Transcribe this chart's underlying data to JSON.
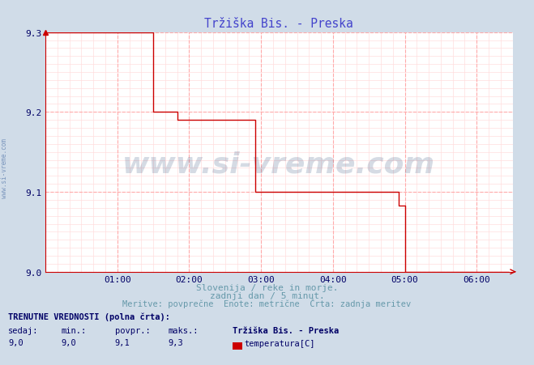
{
  "title": "Tržiška Bis. - Preska",
  "title_color": "#4444cc",
  "bg_color": "#d0dce8",
  "plot_bg_color": "#ffffff",
  "line_color": "#cc0000",
  "xlabel_lines": [
    "Slovenija / reke in morje.",
    "zadnji dan / 5 minut.",
    "Meritve: povprečne  Enote: metrične  Črta: zadnja meritev"
  ],
  "xlabel_color": "#6699aa",
  "watermark": "www.si-vreme.com",
  "watermark_color": "#1a3a6a",
  "watermark_alpha": 0.18,
  "sidebar_text": "www.si-vreme.com",
  "sidebar_color": "#5577aa",
  "ylim": [
    9.0,
    9.3
  ],
  "yticks": [
    9.0,
    9.1,
    9.2,
    9.3
  ],
  "xlim_hours": [
    0.0,
    6.5
  ],
  "xticks_hours": [
    1,
    2,
    3,
    4,
    5,
    6
  ],
  "xtick_labels": [
    "01:00",
    "02:00",
    "03:00",
    "04:00",
    "05:00",
    "06:00"
  ],
  "legend_label": "temperatura[C]",
  "legend_color": "#cc0000",
  "footer_line1": "TRENUTNE VREDNOSTI (polna črta):",
  "footer_cols": [
    "sedaj:",
    "min.:",
    "povpr.:",
    "maks.:"
  ],
  "footer_vals": [
    "9,0",
    "9,0",
    "9,1",
    "9,3"
  ],
  "footer_station": "Tržiška Bis. - Preska",
  "footer_color": "#000066",
  "step_x": [
    0.0,
    1.5,
    1.5,
    1.833,
    1.833,
    2.916,
    2.916,
    4.916,
    4.916,
    5.0,
    5.0,
    6.45
  ],
  "step_y": [
    9.3,
    9.3,
    9.2,
    9.2,
    9.19,
    9.19,
    9.1,
    9.1,
    9.083,
    9.083,
    9.0,
    9.0
  ],
  "minor_grid_color": "#ffdddd",
  "major_grid_color": "#ffaaaa",
  "axis_color": "#cc0000"
}
